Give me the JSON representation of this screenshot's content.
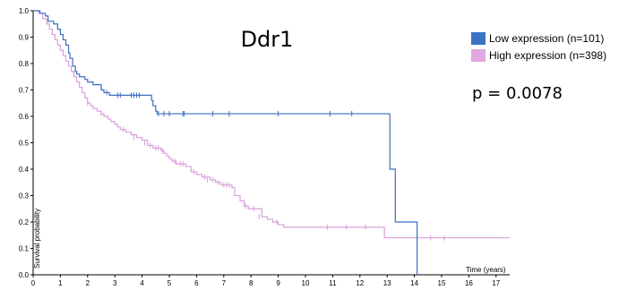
{
  "chart_data": {
    "type": "line",
    "title": "Ddr1",
    "annotation": "p = 0.0078",
    "xlabel": "Time (years)",
    "ylabel": "Survival probability",
    "xlim": [
      0,
      17.5
    ],
    "ylim": [
      0,
      1.0
    ],
    "x_ticks": [
      "0",
      "1",
      "2",
      "3",
      "4",
      "5",
      "6",
      "7",
      "8",
      "9",
      "10",
      "11",
      "12",
      "13",
      "14",
      "15",
      "16",
      "17"
    ],
    "y_ticks": [
      "0.0",
      "0.1",
      "0.2",
      "0.3",
      "0.4",
      "0.5",
      "0.6",
      "0.7",
      "0.8",
      "0.9",
      "1.0"
    ],
    "legend_position": "top-right",
    "series": [
      {
        "name": "Low expression (n=101)",
        "color": "#3a6fc0",
        "legend_color": "#3b73c6",
        "steps": [
          [
            0,
            1.0
          ],
          [
            0.25,
            0.99
          ],
          [
            0.45,
            0.98
          ],
          [
            0.55,
            0.96
          ],
          [
            0.75,
            0.95
          ],
          [
            0.9,
            0.93
          ],
          [
            1.0,
            0.91
          ],
          [
            1.1,
            0.89
          ],
          [
            1.2,
            0.87
          ],
          [
            1.3,
            0.84
          ],
          [
            1.35,
            0.82
          ],
          [
            1.45,
            0.79
          ],
          [
            1.55,
            0.77
          ],
          [
            1.6,
            0.76
          ],
          [
            1.7,
            0.75
          ],
          [
            1.9,
            0.74
          ],
          [
            2.0,
            0.73
          ],
          [
            2.2,
            0.72
          ],
          [
            2.5,
            0.7
          ],
          [
            2.6,
            0.69
          ],
          [
            2.8,
            0.68
          ],
          [
            4.35,
            0.66
          ],
          [
            4.4,
            0.64
          ],
          [
            4.5,
            0.62
          ],
          [
            4.55,
            0.61
          ],
          [
            13.1,
            0.4
          ],
          [
            13.3,
            0.2
          ],
          [
            14.1,
            0.0
          ]
        ],
        "end": 14.1,
        "censors": [
          [
            2.7,
            0.69
          ],
          [
            3.1,
            0.68
          ],
          [
            3.2,
            0.68
          ],
          [
            3.6,
            0.68
          ],
          [
            3.7,
            0.68
          ],
          [
            3.8,
            0.68
          ],
          [
            3.9,
            0.68
          ],
          [
            4.6,
            0.61
          ],
          [
            4.8,
            0.61
          ],
          [
            5.0,
            0.61
          ],
          [
            5.5,
            0.61
          ],
          [
            5.55,
            0.61
          ],
          [
            6.6,
            0.61
          ],
          [
            7.2,
            0.61
          ],
          [
            9.0,
            0.61
          ],
          [
            10.9,
            0.61
          ],
          [
            11.7,
            0.61
          ]
        ]
      },
      {
        "name": "High expression (n=398)",
        "color": "#d9a0d9",
        "legend_color": "#e1a8e1",
        "steps": [
          [
            0,
            1.0
          ],
          [
            0.2,
            0.99
          ],
          [
            0.35,
            0.97
          ],
          [
            0.5,
            0.95
          ],
          [
            0.6,
            0.93
          ],
          [
            0.7,
            0.91
          ],
          [
            0.8,
            0.89
          ],
          [
            0.9,
            0.87
          ],
          [
            1.0,
            0.85
          ],
          [
            1.1,
            0.83
          ],
          [
            1.2,
            0.81
          ],
          [
            1.3,
            0.79
          ],
          [
            1.4,
            0.77
          ],
          [
            1.5,
            0.75
          ],
          [
            1.6,
            0.73
          ],
          [
            1.7,
            0.71
          ],
          [
            1.8,
            0.69
          ],
          [
            1.9,
            0.67
          ],
          [
            2.0,
            0.65
          ],
          [
            2.1,
            0.64
          ],
          [
            2.2,
            0.63
          ],
          [
            2.35,
            0.62
          ],
          [
            2.5,
            0.61
          ],
          [
            2.6,
            0.6
          ],
          [
            2.75,
            0.59
          ],
          [
            2.85,
            0.58
          ],
          [
            3.0,
            0.57
          ],
          [
            3.1,
            0.56
          ],
          [
            3.2,
            0.55
          ],
          [
            3.4,
            0.54
          ],
          [
            3.6,
            0.53
          ],
          [
            3.8,
            0.52
          ],
          [
            4.0,
            0.51
          ],
          [
            4.2,
            0.49
          ],
          [
            4.4,
            0.48
          ],
          [
            4.7,
            0.47
          ],
          [
            4.8,
            0.46
          ],
          [
            4.9,
            0.45
          ],
          [
            5.0,
            0.44
          ],
          [
            5.1,
            0.43
          ],
          [
            5.25,
            0.42
          ],
          [
            5.6,
            0.41
          ],
          [
            5.8,
            0.39
          ],
          [
            6.0,
            0.38
          ],
          [
            6.2,
            0.37
          ],
          [
            6.5,
            0.36
          ],
          [
            6.7,
            0.35
          ],
          [
            6.9,
            0.34
          ],
          [
            7.3,
            0.33
          ],
          [
            7.4,
            0.3
          ],
          [
            7.6,
            0.28
          ],
          [
            7.75,
            0.26
          ],
          [
            7.9,
            0.25
          ],
          [
            8.4,
            0.22
          ],
          [
            8.6,
            0.21
          ],
          [
            8.8,
            0.2
          ],
          [
            9.0,
            0.19
          ],
          [
            9.2,
            0.18
          ],
          [
            12.9,
            0.14
          ]
        ],
        "end": 17.5,
        "censors": [
          [
            2.0,
            0.65
          ],
          [
            2.5,
            0.61
          ],
          [
            3.3,
            0.55
          ],
          [
            3.7,
            0.52
          ],
          [
            4.1,
            0.5
          ],
          [
            4.3,
            0.49
          ],
          [
            4.5,
            0.48
          ],
          [
            4.6,
            0.48
          ],
          [
            4.75,
            0.47
          ],
          [
            5.2,
            0.43
          ],
          [
            5.4,
            0.42
          ],
          [
            5.5,
            0.42
          ],
          [
            5.9,
            0.39
          ],
          [
            6.3,
            0.37
          ],
          [
            6.4,
            0.36
          ],
          [
            6.6,
            0.36
          ],
          [
            6.8,
            0.35
          ],
          [
            7.0,
            0.34
          ],
          [
            7.1,
            0.34
          ],
          [
            7.2,
            0.34
          ],
          [
            7.8,
            0.26
          ],
          [
            8.1,
            0.25
          ],
          [
            8.3,
            0.22
          ],
          [
            8.95,
            0.2
          ],
          [
            10.8,
            0.18
          ],
          [
            11.5,
            0.18
          ],
          [
            12.2,
            0.18
          ],
          [
            14.6,
            0.14
          ],
          [
            15.1,
            0.14
          ]
        ]
      }
    ]
  }
}
